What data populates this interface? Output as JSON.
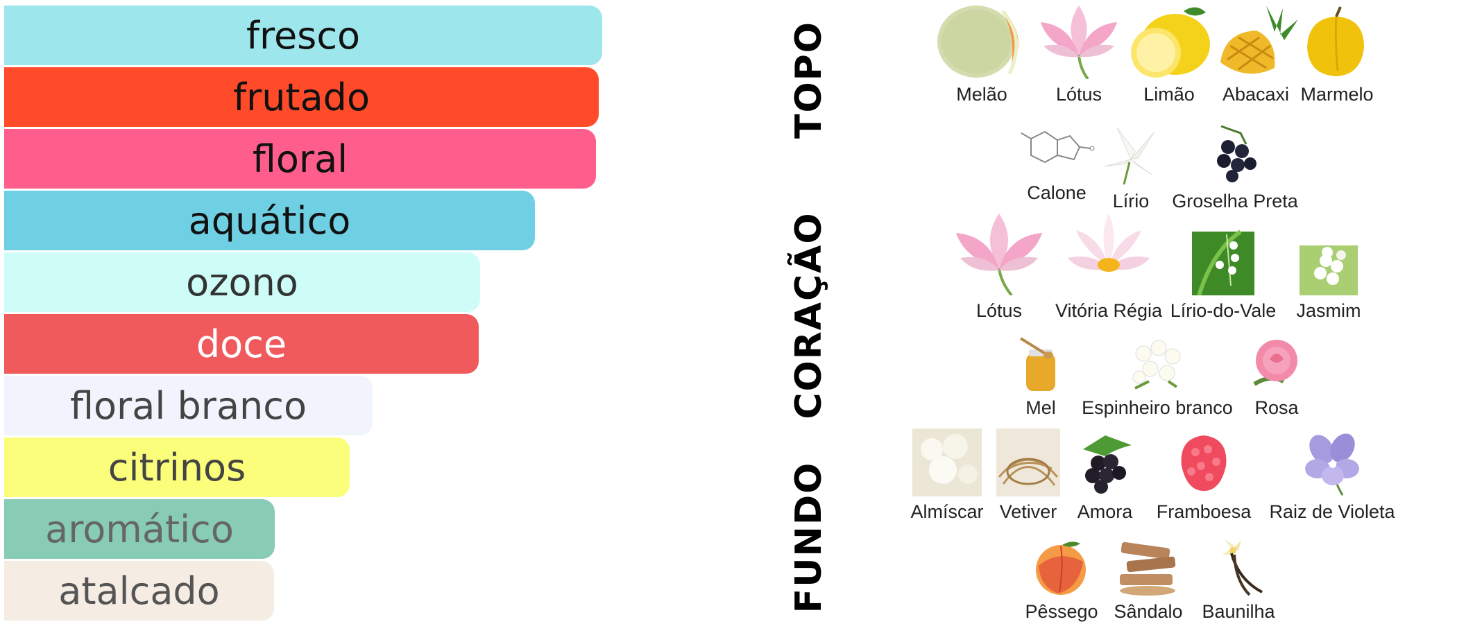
{
  "accords": [
    {
      "label": "fresco",
      "strength": 1.0,
      "color": "#9de6ec",
      "text_color": "#111111"
    },
    {
      "label": "frutado",
      "strength": 0.994,
      "color": "#ff4b2a",
      "text_color": "#111111"
    },
    {
      "label": "floral",
      "strength": 0.989,
      "color": "#ff5e8d",
      "text_color": "#111111"
    },
    {
      "label": "aquático",
      "strength": 0.888,
      "color": "#6fd0e3",
      "text_color": "#111111"
    },
    {
      "label": "ozono",
      "strength": 0.796,
      "color": "#cefdf8",
      "text_color": "#333333"
    },
    {
      "label": "doce",
      "strength": 0.794,
      "color": "#f05a5d",
      "text_color": "#ffffff"
    },
    {
      "label": "floral branco",
      "strength": 0.616,
      "color": "#f1f4fd",
      "text_color": "#444444"
    },
    {
      "label": "citrinos",
      "strength": 0.578,
      "color": "#fbfe7a",
      "text_color": "#444444"
    },
    {
      "label": "aromático",
      "strength": 0.453,
      "color": "#88ccb6",
      "text_color": "#666666"
    },
    {
      "label": "atalcado",
      "strength": 0.451,
      "color": "#f5ece3",
      "text_color": "#555555"
    }
  ],
  "sections": [
    {
      "label": "TOPO",
      "rows": [
        [
          "Melão",
          "Lótus",
          "Limão",
          "Abacaxi",
          "Marmelo"
        ],
        [
          "Calone",
          "Lírio",
          "Groselha Preta"
        ]
      ]
    },
    {
      "label": "CORAÇÃO",
      "rows": [
        [
          "Lótus",
          "Vitória Régia",
          "Lírio-do-Vale",
          "Jasmim"
        ],
        [
          "Mel",
          "Espinheiro branco",
          "Rosa"
        ]
      ]
    },
    {
      "label": "FUNDO",
      "rows": [
        [
          "Almíscar",
          "Vetiver",
          "Amora",
          "Framboesa",
          "Raiz de Violeta"
        ],
        [
          "Pêssego",
          "Sândalo",
          "Baunilha"
        ]
      ]
    }
  ]
}
